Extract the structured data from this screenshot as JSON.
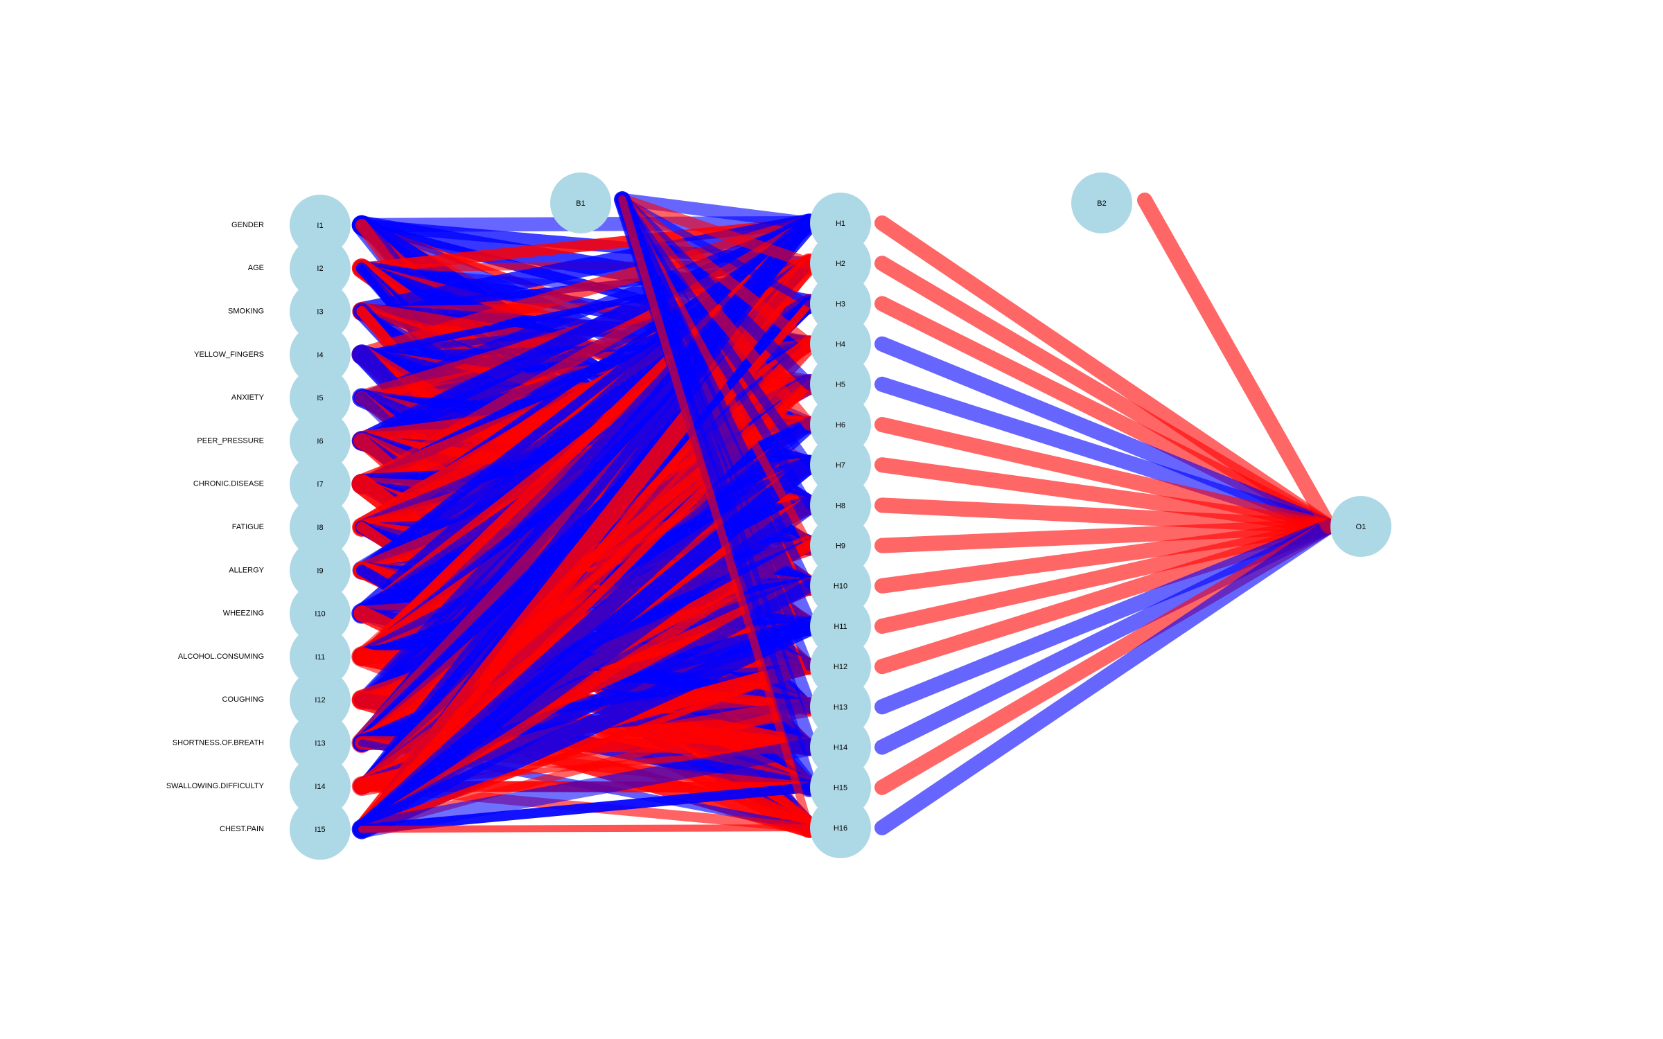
{
  "colors": {
    "node_fill": "#add8e6",
    "positive_weight": "#ff0000",
    "negative_weight": "#0000ff",
    "background": "#ffffff"
  },
  "input_nodes": [
    {
      "id": "I1",
      "name": "GENDER"
    },
    {
      "id": "I2",
      "name": "AGE"
    },
    {
      "id": "I3",
      "name": "SMOKING"
    },
    {
      "id": "I4",
      "name": "YELLOW_FINGERS"
    },
    {
      "id": "I5",
      "name": "ANXIETY"
    },
    {
      "id": "I6",
      "name": "PEER_PRESSURE"
    },
    {
      "id": "I7",
      "name": "CHRONIC.DISEASE"
    },
    {
      "id": "I8",
      "name": "FATIGUE"
    },
    {
      "id": "I9",
      "name": "ALLERGY"
    },
    {
      "id": "I10",
      "name": "WHEEZING"
    },
    {
      "id": "I11",
      "name": "ALCOHOL.CONSUMING"
    },
    {
      "id": "I12",
      "name": "COUGHING"
    },
    {
      "id": "I13",
      "name": "SHORTNESS.OF.BREATH"
    },
    {
      "id": "I14",
      "name": "SWALLOWING.DIFFICULTY"
    },
    {
      "id": "I15",
      "name": "CHEST.PAIN"
    }
  ],
  "hidden_nodes": [
    "H1",
    "H2",
    "H3",
    "H4",
    "H5",
    "H6",
    "H7",
    "H8",
    "H9",
    "H10",
    "H11",
    "H12",
    "H13",
    "H14",
    "H15",
    "H16"
  ],
  "bias_nodes": {
    "hidden_bias": "B1",
    "output_bias": "B2"
  },
  "output_nodes": [
    "O1"
  ],
  "hidden_to_output_sign": [
    "+",
    "+",
    "+",
    "-",
    "-",
    "+",
    "+",
    "+",
    "+",
    "+",
    "+",
    "+",
    "-",
    "-",
    "+",
    "-"
  ],
  "output_bias_sign": "+"
}
